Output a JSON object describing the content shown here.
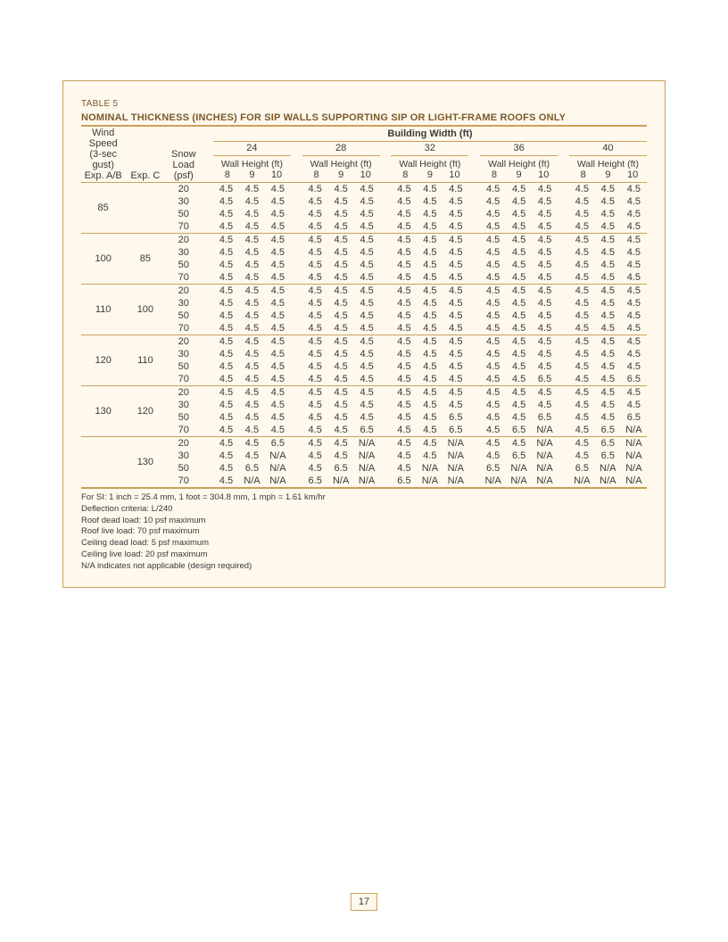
{
  "page_number": "17",
  "table": {
    "label": "TABLE 5",
    "title": "NOMINAL THICKNESS (INCHES) FOR SIP WALLS SUPPORTING SIP OR LIGHT-FRAME ROOFS ONLY",
    "building_width_label": "Building Width (ft)",
    "wind_header_line1": "Wind Speed",
    "wind_header_line2": "(3-sec gust)",
    "exp_ab": "Exp. A/B",
    "exp_c": "Exp. C",
    "snow_header_line1": "Snow",
    "snow_header_line2": "Load",
    "snow_header_line3": "(psf)",
    "wall_height_label": "Wall Height (ft)",
    "building_widths": [
      "24",
      "28",
      "32",
      "36",
      "40"
    ],
    "wall_heights": [
      "8",
      "9",
      "10"
    ],
    "colors": {
      "background": "#fff8ec",
      "border": "#caa15a",
      "heading_text": "#7a5a2a",
      "body_text": "#3a3a3a"
    },
    "fontsizes": {
      "label": 10,
      "title": 11,
      "body": 11,
      "notes": 9.5
    },
    "groups": [
      {
        "exp_ab": "85",
        "exp_c": "",
        "rows": [
          {
            "snow": "20",
            "v": [
              "4.5",
              "4.5",
              "4.5",
              "4.5",
              "4.5",
              "4.5",
              "4.5",
              "4.5",
              "4.5",
              "4.5",
              "4.5",
              "4.5",
              "4.5",
              "4.5",
              "4.5"
            ]
          },
          {
            "snow": "30",
            "v": [
              "4.5",
              "4.5",
              "4.5",
              "4.5",
              "4.5",
              "4.5",
              "4.5",
              "4.5",
              "4.5",
              "4.5",
              "4.5",
              "4.5",
              "4.5",
              "4.5",
              "4.5"
            ]
          },
          {
            "snow": "50",
            "v": [
              "4.5",
              "4.5",
              "4.5",
              "4.5",
              "4.5",
              "4.5",
              "4.5",
              "4.5",
              "4.5",
              "4.5",
              "4.5",
              "4.5",
              "4.5",
              "4.5",
              "4.5"
            ]
          },
          {
            "snow": "70",
            "v": [
              "4.5",
              "4.5",
              "4.5",
              "4.5",
              "4.5",
              "4.5",
              "4.5",
              "4.5",
              "4.5",
              "4.5",
              "4.5",
              "4.5",
              "4.5",
              "4.5",
              "4.5"
            ]
          }
        ]
      },
      {
        "exp_ab": "100",
        "exp_c": "85",
        "rows": [
          {
            "snow": "20",
            "v": [
              "4.5",
              "4.5",
              "4.5",
              "4.5",
              "4.5",
              "4.5",
              "4.5",
              "4.5",
              "4.5",
              "4.5",
              "4.5",
              "4.5",
              "4.5",
              "4.5",
              "4.5"
            ]
          },
          {
            "snow": "30",
            "v": [
              "4.5",
              "4.5",
              "4.5",
              "4.5",
              "4.5",
              "4.5",
              "4.5",
              "4.5",
              "4.5",
              "4.5",
              "4.5",
              "4.5",
              "4.5",
              "4.5",
              "4.5"
            ]
          },
          {
            "snow": "50",
            "v": [
              "4.5",
              "4.5",
              "4.5",
              "4.5",
              "4.5",
              "4.5",
              "4.5",
              "4.5",
              "4.5",
              "4.5",
              "4.5",
              "4.5",
              "4.5",
              "4.5",
              "4.5"
            ]
          },
          {
            "snow": "70",
            "v": [
              "4.5",
              "4.5",
              "4.5",
              "4.5",
              "4.5",
              "4.5",
              "4.5",
              "4.5",
              "4.5",
              "4.5",
              "4.5",
              "4.5",
              "4.5",
              "4.5",
              "4.5"
            ]
          }
        ]
      },
      {
        "exp_ab": "110",
        "exp_c": "100",
        "rows": [
          {
            "snow": "20",
            "v": [
              "4.5",
              "4.5",
              "4.5",
              "4.5",
              "4.5",
              "4.5",
              "4.5",
              "4.5",
              "4.5",
              "4.5",
              "4.5",
              "4.5",
              "4.5",
              "4.5",
              "4.5"
            ]
          },
          {
            "snow": "30",
            "v": [
              "4.5",
              "4.5",
              "4.5",
              "4.5",
              "4.5",
              "4.5",
              "4.5",
              "4.5",
              "4.5",
              "4.5",
              "4.5",
              "4.5",
              "4.5",
              "4.5",
              "4.5"
            ]
          },
          {
            "snow": "50",
            "v": [
              "4.5",
              "4.5",
              "4.5",
              "4.5",
              "4.5",
              "4.5",
              "4.5",
              "4.5",
              "4.5",
              "4.5",
              "4.5",
              "4.5",
              "4.5",
              "4.5",
              "4.5"
            ]
          },
          {
            "snow": "70",
            "v": [
              "4.5",
              "4.5",
              "4.5",
              "4.5",
              "4.5",
              "4.5",
              "4.5",
              "4.5",
              "4.5",
              "4.5",
              "4.5",
              "4.5",
              "4.5",
              "4.5",
              "4.5"
            ]
          }
        ]
      },
      {
        "exp_ab": "120",
        "exp_c": "110",
        "rows": [
          {
            "snow": "20",
            "v": [
              "4.5",
              "4.5",
              "4.5",
              "4.5",
              "4.5",
              "4.5",
              "4.5",
              "4.5",
              "4.5",
              "4.5",
              "4.5",
              "4.5",
              "4.5",
              "4.5",
              "4.5"
            ]
          },
          {
            "snow": "30",
            "v": [
              "4.5",
              "4.5",
              "4.5",
              "4.5",
              "4.5",
              "4.5",
              "4.5",
              "4.5",
              "4.5",
              "4.5",
              "4.5",
              "4.5",
              "4.5",
              "4.5",
              "4.5"
            ]
          },
          {
            "snow": "50",
            "v": [
              "4.5",
              "4.5",
              "4.5",
              "4.5",
              "4.5",
              "4.5",
              "4.5",
              "4.5",
              "4.5",
              "4.5",
              "4.5",
              "4.5",
              "4.5",
              "4.5",
              "4.5"
            ]
          },
          {
            "snow": "70",
            "v": [
              "4.5",
              "4.5",
              "4.5",
              "4.5",
              "4.5",
              "4.5",
              "4.5",
              "4.5",
              "4.5",
              "4.5",
              "4.5",
              "6.5",
              "4.5",
              "4.5",
              "6.5"
            ]
          }
        ]
      },
      {
        "exp_ab": "130",
        "exp_c": "120",
        "rows": [
          {
            "snow": "20",
            "v": [
              "4.5",
              "4.5",
              "4.5",
              "4.5",
              "4.5",
              "4.5",
              "4.5",
              "4.5",
              "4.5",
              "4.5",
              "4.5",
              "4.5",
              "4.5",
              "4.5",
              "4.5"
            ]
          },
          {
            "snow": "30",
            "v": [
              "4.5",
              "4.5",
              "4.5",
              "4.5",
              "4.5",
              "4.5",
              "4.5",
              "4.5",
              "4.5",
              "4.5",
              "4.5",
              "4.5",
              "4.5",
              "4.5",
              "4.5"
            ]
          },
          {
            "snow": "50",
            "v": [
              "4.5",
              "4.5",
              "4.5",
              "4.5",
              "4.5",
              "4.5",
              "4.5",
              "4.5",
              "6.5",
              "4.5",
              "4.5",
              "6.5",
              "4.5",
              "4.5",
              "6.5"
            ]
          },
          {
            "snow": "70",
            "v": [
              "4.5",
              "4.5",
              "4.5",
              "4.5",
              "4.5",
              "6.5",
              "4.5",
              "4.5",
              "6.5",
              "4.5",
              "6.5",
              "N/A",
              "4.5",
              "6.5",
              "N/A"
            ]
          }
        ]
      },
      {
        "exp_ab": "",
        "exp_c": "130",
        "rows": [
          {
            "snow": "20",
            "v": [
              "4.5",
              "4.5",
              "6.5",
              "4.5",
              "4.5",
              "N/A",
              "4.5",
              "4.5",
              "N/A",
              "4.5",
              "4.5",
              "N/A",
              "4.5",
              "6.5",
              "N/A"
            ]
          },
          {
            "snow": "30",
            "v": [
              "4.5",
              "4.5",
              "N/A",
              "4.5",
              "4.5",
              "N/A",
              "4.5",
              "4.5",
              "N/A",
              "4.5",
              "6.5",
              "N/A",
              "4.5",
              "6.5",
              "N/A"
            ]
          },
          {
            "snow": "50",
            "v": [
              "4.5",
              "6.5",
              "N/A",
              "4.5",
              "6.5",
              "N/A",
              "4.5",
              "N/A",
              "N/A",
              "6.5",
              "N/A",
              "N/A",
              "6.5",
              "N/A",
              "N/A"
            ]
          },
          {
            "snow": "70",
            "v": [
              "4.5",
              "N/A",
              "N/A",
              "6.5",
              "N/A",
              "N/A",
              "6.5",
              "N/A",
              "N/A",
              "N/A",
              "N/A",
              "N/A",
              "N/A",
              "N/A",
              "N/A"
            ]
          }
        ]
      }
    ],
    "notes": [
      "For SI: 1 inch = 25.4 mm, 1 foot = 304.8 mm, 1 mph = 1.61 km/hr",
      "Deflection criteria: L/240",
      "Roof dead load: 10 psf maximum",
      "Roof live load: 70 psf maximum",
      "Ceiling dead load: 5 psf maximum",
      "Ceiling live load: 20 psf maximum",
      "N/A indicates not applicable (design required)"
    ]
  }
}
